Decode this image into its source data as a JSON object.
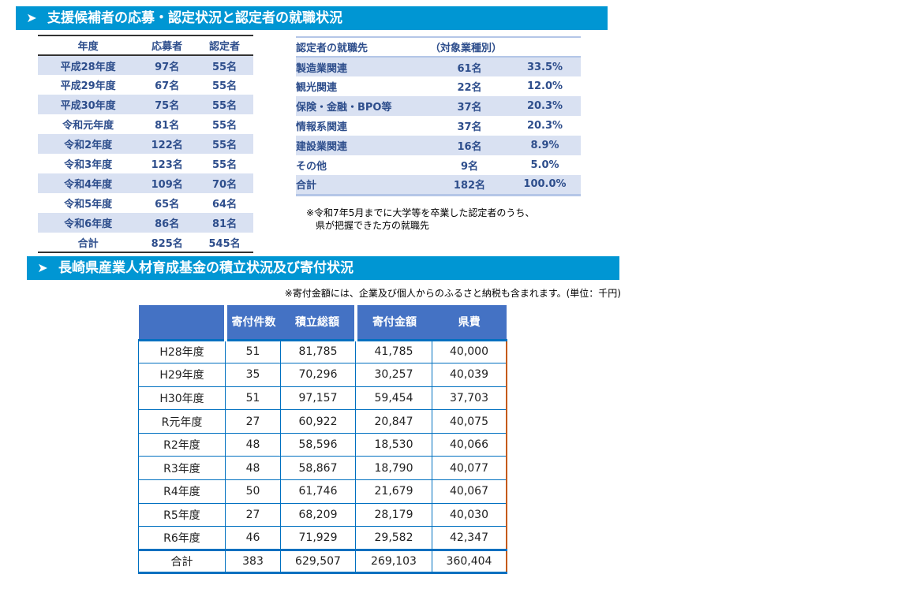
{
  "section1": {
    "title": "支援候補者の応募・認定状況と認定者の就職状況",
    "chevron_icon": "chevron-right-icon"
  },
  "applicants": {
    "headers": [
      "年度",
      "応募者",
      "認定者"
    ],
    "rows": [
      [
        "平成28年度",
        "97名",
        "55名"
      ],
      [
        "平成29年度",
        "67名",
        "55名"
      ],
      [
        "平成30年度",
        "75名",
        "55名"
      ],
      [
        "令和元年度",
        "81名",
        "55名"
      ],
      [
        "令和2年度",
        "122名",
        "55名"
      ],
      [
        "令和3年度",
        "123名",
        "55名"
      ],
      [
        "令和4年度",
        "109名",
        "70名"
      ],
      [
        "令和5年度",
        "65名",
        "64名"
      ],
      [
        "令和6年度",
        "86名",
        "81名"
      ],
      [
        "合計",
        "825名",
        "545名"
      ]
    ]
  },
  "employment": {
    "headers": [
      "認定者の就職先",
      "（対象業種別）",
      ""
    ],
    "rows": [
      [
        "製造業関連",
        "61名",
        "33.5%"
      ],
      [
        "観光関連",
        "22名",
        "12.0%"
      ],
      [
        "保険・金融・BPO等",
        "37名",
        "20.3%"
      ],
      [
        "情報系関連",
        "37名",
        "20.3%"
      ],
      [
        "建設業関連",
        "16名",
        "8.9%"
      ],
      [
        "その他",
        "9名",
        "5.0%"
      ],
      [
        "合計",
        "182名",
        "100.0%"
      ]
    ],
    "note_line1": "※令和7年5月までに大学等を卒業した認定者のうち、",
    "note_line2": "　県が把握できた方の就職先"
  },
  "section2": {
    "title": "長崎県産業人材育成基金の積立状況及び寄付状況",
    "note": "※寄付金額には、企業及び個人からのふるさと納税も含まれます。(単位：千円)"
  },
  "fund": {
    "headers": [
      "",
      "寄付件数",
      "積立総額",
      "寄付金額",
      "県費"
    ],
    "rows": [
      [
        "H28年度",
        "51",
        "81,785",
        "41,785",
        "40,000"
      ],
      [
        "H29年度",
        "35",
        "70,296",
        "30,257",
        "40,039"
      ],
      [
        "H30年度",
        "51",
        "97,157",
        "59,454",
        "37,703"
      ],
      [
        "R元年度",
        "27",
        "60,922",
        "20,847",
        "40,075"
      ],
      [
        "R2年度",
        "48",
        "58,596",
        "18,530",
        "40,066"
      ],
      [
        "R3年度",
        "48",
        "58,867",
        "18,790",
        "40,077"
      ],
      [
        "R4年度",
        "50",
        "61,746",
        "21,679",
        "40,067"
      ],
      [
        "R5年度",
        "27",
        "68,209",
        "28,179",
        "40,030"
      ],
      [
        "R6年度",
        "46",
        "71,929",
        "29,582",
        "42,347"
      ],
      [
        "合計",
        "383",
        "629,507",
        "269,103",
        "360,404"
      ]
    ]
  },
  "colors": {
    "banner": "#0096d3",
    "text_blue": "#2e4e8c",
    "stripe": "#d9e1f2",
    "fund_header": "#4472c4",
    "fund_border": "#0070c0",
    "accent_orange": "#c55a11"
  }
}
